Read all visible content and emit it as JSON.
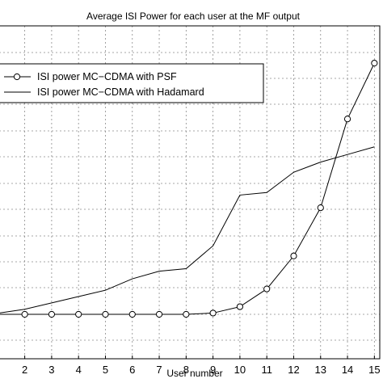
{
  "chart_data": {
    "type": "line",
    "title": "Average ISI Power for each user at the MF output",
    "xlabel": "User number",
    "ylabel": "",
    "x": [
      2,
      3,
      4,
      5,
      6,
      7,
      8,
      9,
      10,
      11,
      12,
      13,
      14,
      15
    ],
    "x_ticks": [
      "2",
      "3",
      "4",
      "5",
      "6",
      "7",
      "8",
      "9",
      "10",
      "11",
      "12",
      "13",
      "14",
      "15"
    ],
    "xlim": [
      1.05,
      15.2
    ],
    "ylim": [
      0,
      1
    ],
    "grid": true,
    "legend_position": "upper-left",
    "series": [
      {
        "name": "ISI power MC−CDMA with PSF",
        "marker": "circle",
        "values": [
          0.0,
          0.0,
          0.0,
          0.0,
          0.0,
          0.0,
          0.0,
          0.005,
          0.03,
          0.1,
          0.23,
          0.42,
          0.77,
          0.99
        ]
      },
      {
        "name": "ISI power MC−CDMA with Hadamard",
        "marker": "none",
        "values": [
          0.02,
          0.045,
          0.07,
          0.095,
          0.14,
          0.17,
          0.18,
          0.27,
          0.47,
          0.48,
          0.56,
          0.6,
          0.63,
          0.66
        ]
      }
    ]
  }
}
